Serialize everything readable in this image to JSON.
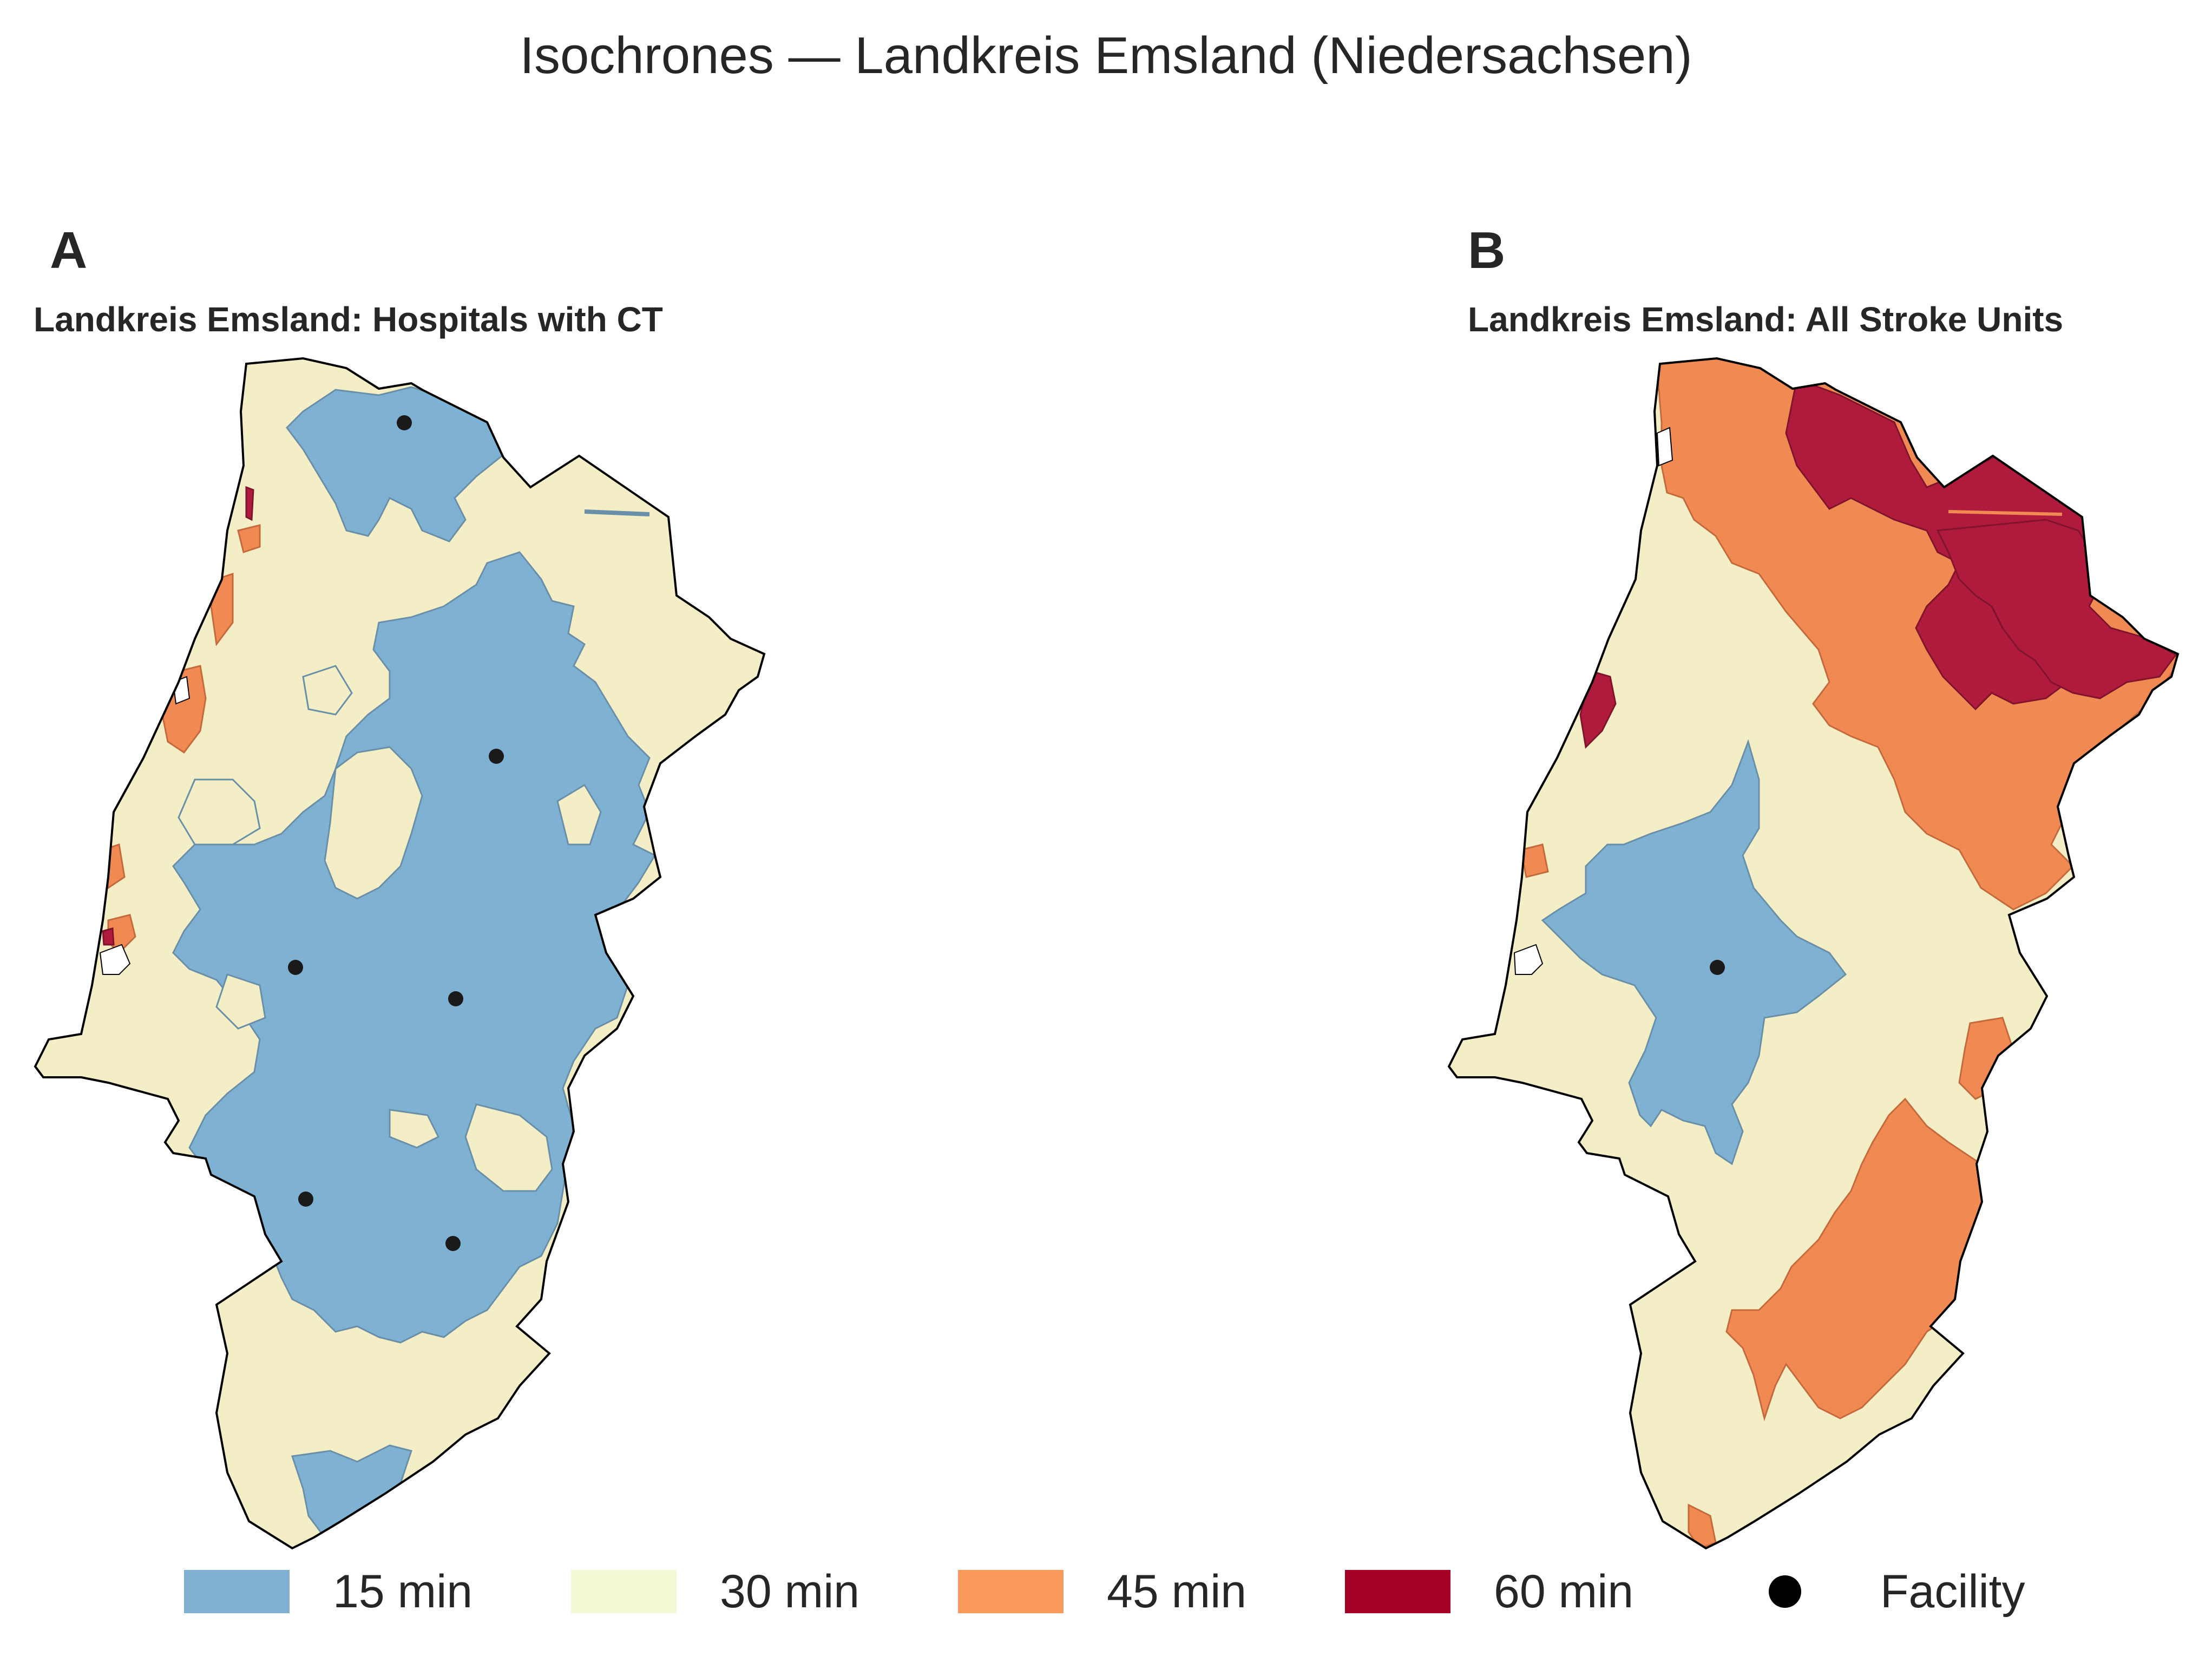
{
  "title": "Isochrones — Landkreis Emsland (Niedersachsen)",
  "panels": [
    {
      "letter": "A",
      "title": "Landkreis Emsland: Hospitals with CT",
      "facility_count": 6
    },
    {
      "letter": "B",
      "title": "Landkreis Emsland: All Stroke Units",
      "facility_count": 1
    }
  ],
  "legend": {
    "items": [
      {
        "label": "15 min",
        "color": "#7fb1d3"
      },
      {
        "label": "30 min",
        "color": "#f3eec6"
      },
      {
        "label": "45 min",
        "color": "#f08a52"
      },
      {
        "label": "60 min",
        "color": "#b01a3c"
      }
    ],
    "facility_label": "Facility",
    "facility_color": "#000000"
  },
  "colors": {
    "boundary": "#000000",
    "no_data": "#ffffff",
    "legend_30min_swatch": "#f4f9d5",
    "legend_45min_swatch": "#f99a5a",
    "legend_60min_swatch": "#a50026"
  }
}
